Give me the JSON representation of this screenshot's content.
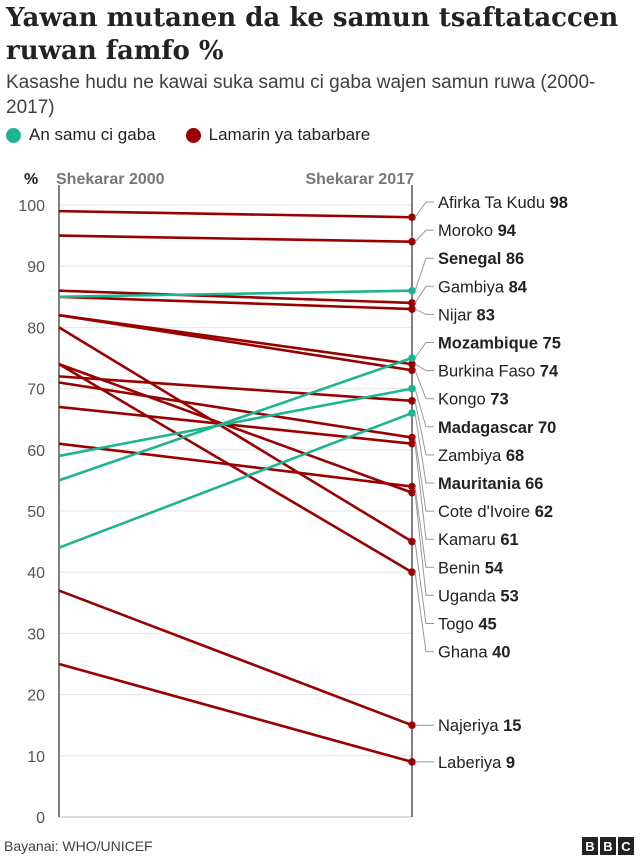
{
  "title": "Yawan mutanen da ke samun tsaftataccen ruwan famfo %",
  "subtitle": "Kasashe hudu ne kawai suka samu ci gaba wajen samun ruwa (2000-2017)",
  "legend": [
    {
      "label": "An samu ci gaba",
      "color": "#1db58f"
    },
    {
      "label": "Lamarin ya tabarbare",
      "color": "#990000"
    }
  ],
  "source": "Bayanai: WHO/UNICEF",
  "logo": [
    "B",
    "B",
    "C"
  ],
  "chart_data": {
    "type": "line",
    "ylabel": "%",
    "x": [
      "Shekarar 2000",
      "Shekarar 2017"
    ],
    "ylim": [
      0,
      100
    ],
    "yticks": [
      0,
      10,
      20,
      30,
      40,
      50,
      60,
      70,
      80,
      90,
      100
    ],
    "colors": {
      "improved": "#1db58f",
      "worsened": "#990000"
    },
    "series": [
      {
        "name": "Afirka Ta Kudu",
        "values": [
          99,
          98
        ],
        "label": "98",
        "status": "worsened",
        "bold": false
      },
      {
        "name": "Moroko",
        "values": [
          95,
          94
        ],
        "label": "94",
        "status": "worsened",
        "bold": false
      },
      {
        "name": "Senegal",
        "values": [
          85,
          86
        ],
        "label": "86",
        "status": "improved",
        "bold": true
      },
      {
        "name": "Gambiya",
        "values": [
          86,
          84
        ],
        "label": "84",
        "status": "worsened",
        "bold": false
      },
      {
        "name": "Nijar",
        "values": [
          85,
          83
        ],
        "label": "83",
        "status": "worsened",
        "bold": false
      },
      {
        "name": "Mozambique",
        "values": [
          55,
          75
        ],
        "label": "75",
        "status": "improved",
        "bold": true
      },
      {
        "name": "Burkina Faso",
        "values": [
          82,
          74
        ],
        "label": "74",
        "status": "worsened",
        "bold": false
      },
      {
        "name": "Kongo",
        "values": [
          82,
          73
        ],
        "label": "73",
        "status": "worsened",
        "bold": false
      },
      {
        "name": "Madagascar",
        "values": [
          59,
          70
        ],
        "label": "70",
        "status": "improved",
        "bold": true
      },
      {
        "name": "Zambiya",
        "values": [
          72,
          68
        ],
        "label": "68",
        "status": "worsened",
        "bold": false
      },
      {
        "name": "Mauritania",
        "values": [
          44,
          66
        ],
        "label": "66",
        "status": "improved",
        "bold": true
      },
      {
        "name": "Cote d'Ivoire",
        "values": [
          71,
          62
        ],
        "label": "62",
        "status": "worsened",
        "bold": false
      },
      {
        "name": "Kamaru",
        "values": [
          67,
          61
        ],
        "label": "61",
        "status": "worsened",
        "bold": false
      },
      {
        "name": "Benin",
        "values": [
          61,
          54
        ],
        "label": "54",
        "status": "worsened",
        "bold": false
      },
      {
        "name": "Uganda",
        "values": [
          74,
          53
        ],
        "label": "53",
        "status": "worsened",
        "bold": false
      },
      {
        "name": "Togo",
        "values": [
          80,
          45
        ],
        "label": "45",
        "status": "worsened",
        "bold": false
      },
      {
        "name": "Ghana",
        "values": [
          74,
          40
        ],
        "label": "40",
        "status": "worsened",
        "bold": false
      },
      {
        "name": "Najeriya",
        "values": [
          37,
          15
        ],
        "label": "15",
        "status": "worsened",
        "bold": false
      },
      {
        "name": "Laberiya",
        "values": [
          25,
          9
        ],
        "label": "9",
        "status": "worsened",
        "bold": false
      }
    ]
  }
}
